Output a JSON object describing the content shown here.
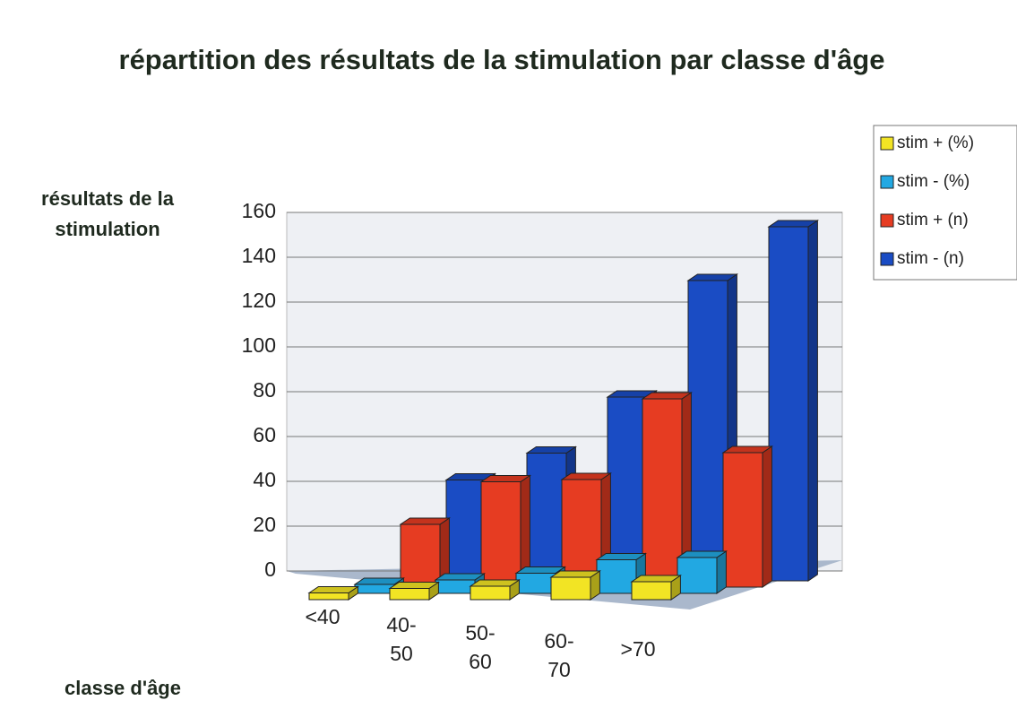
{
  "chart_data": {
    "type": "bar3d",
    "title": "répartition des résultats de la stimulation par classe d'âge",
    "y_label": "résultats de la stimulation",
    "x_label": "classe d'âge",
    "categories": [
      "<40",
      "40-50",
      "50-60",
      "60-70",
      ">70"
    ],
    "series": [
      {
        "name": "stim + (%)",
        "color": "#f2e424",
        "values": [
          3,
          5,
          6,
          10,
          8
        ]
      },
      {
        "name": "stim - (%)",
        "color": "#22a8e2",
        "values": [
          4,
          6,
          9,
          15,
          16
        ]
      },
      {
        "name": "stim + (n)",
        "color": "#e63c22",
        "values": [
          28,
          47,
          48,
          84,
          60
        ]
      },
      {
        "name": "stim - (n)",
        "color": "#1a4cc4",
        "values": [
          45,
          57,
          82,
          134,
          158
        ]
      }
    ],
    "ylim": [
      0,
      160
    ],
    "yticks": [
      0,
      20,
      40,
      60,
      80,
      100,
      120,
      140,
      160
    ],
    "grid": true,
    "legend": "right"
  }
}
